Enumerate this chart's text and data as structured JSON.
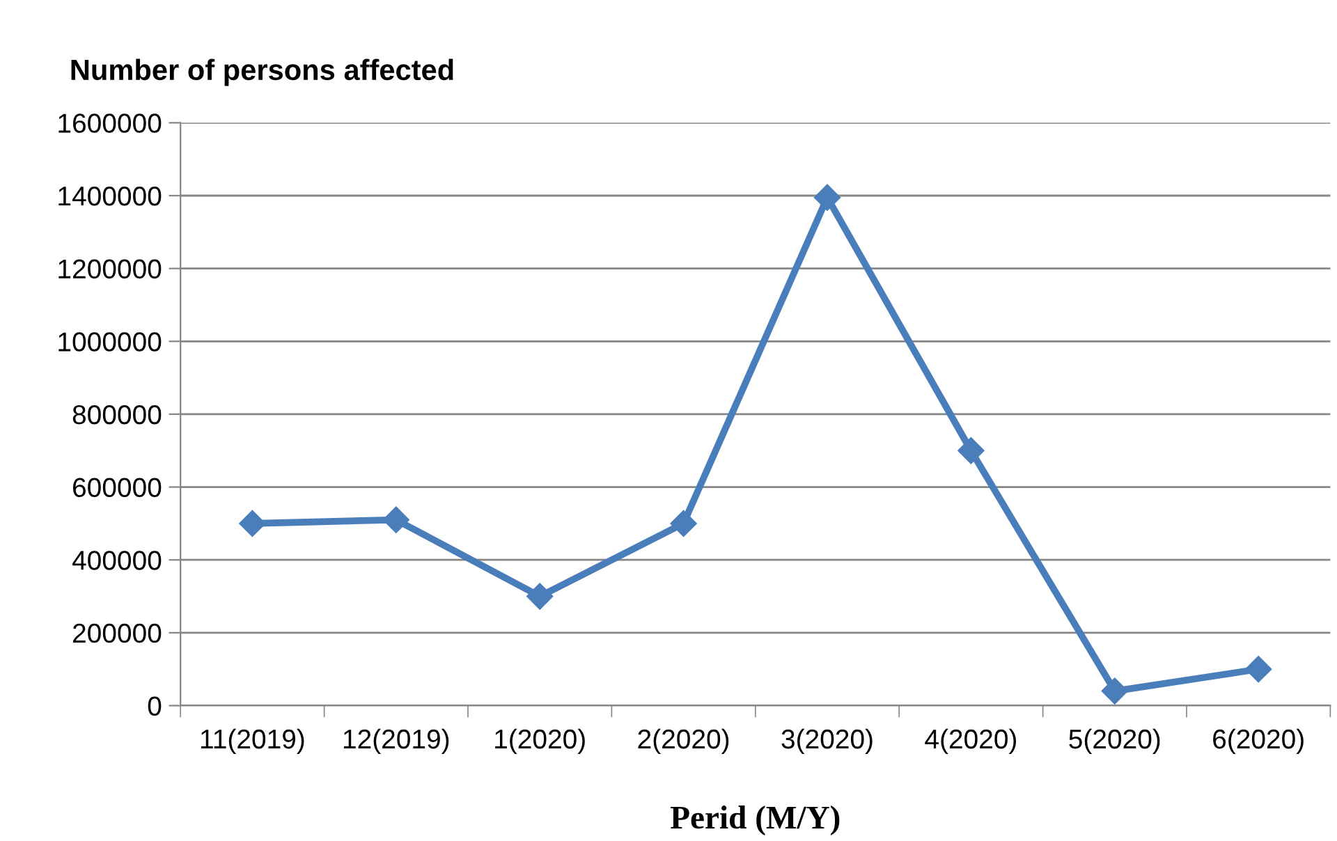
{
  "chart_data": {
    "type": "line",
    "ylabel": "Number of persons affected",
    "xlabel": "Perid (M/Y)",
    "categories": [
      "11(2019)",
      "12(2019)",
      "1(2020)",
      "2(2020)",
      "3(2020)",
      "4(2020)",
      "5(2020)",
      "6(2020)"
    ],
    "series": [
      {
        "color": "#4a7ebb",
        "values": [
          500000,
          510000,
          300000,
          500000,
          1395000,
          700000,
          40000,
          100000
        ]
      }
    ],
    "ylim": [
      0,
      1600000
    ],
    "yticks": [
      0,
      200000,
      400000,
      600000,
      800000,
      1000000,
      1200000,
      1400000,
      1600000
    ],
    "grid": "y",
    "marker": "diamond",
    "line_style": "solid"
  }
}
